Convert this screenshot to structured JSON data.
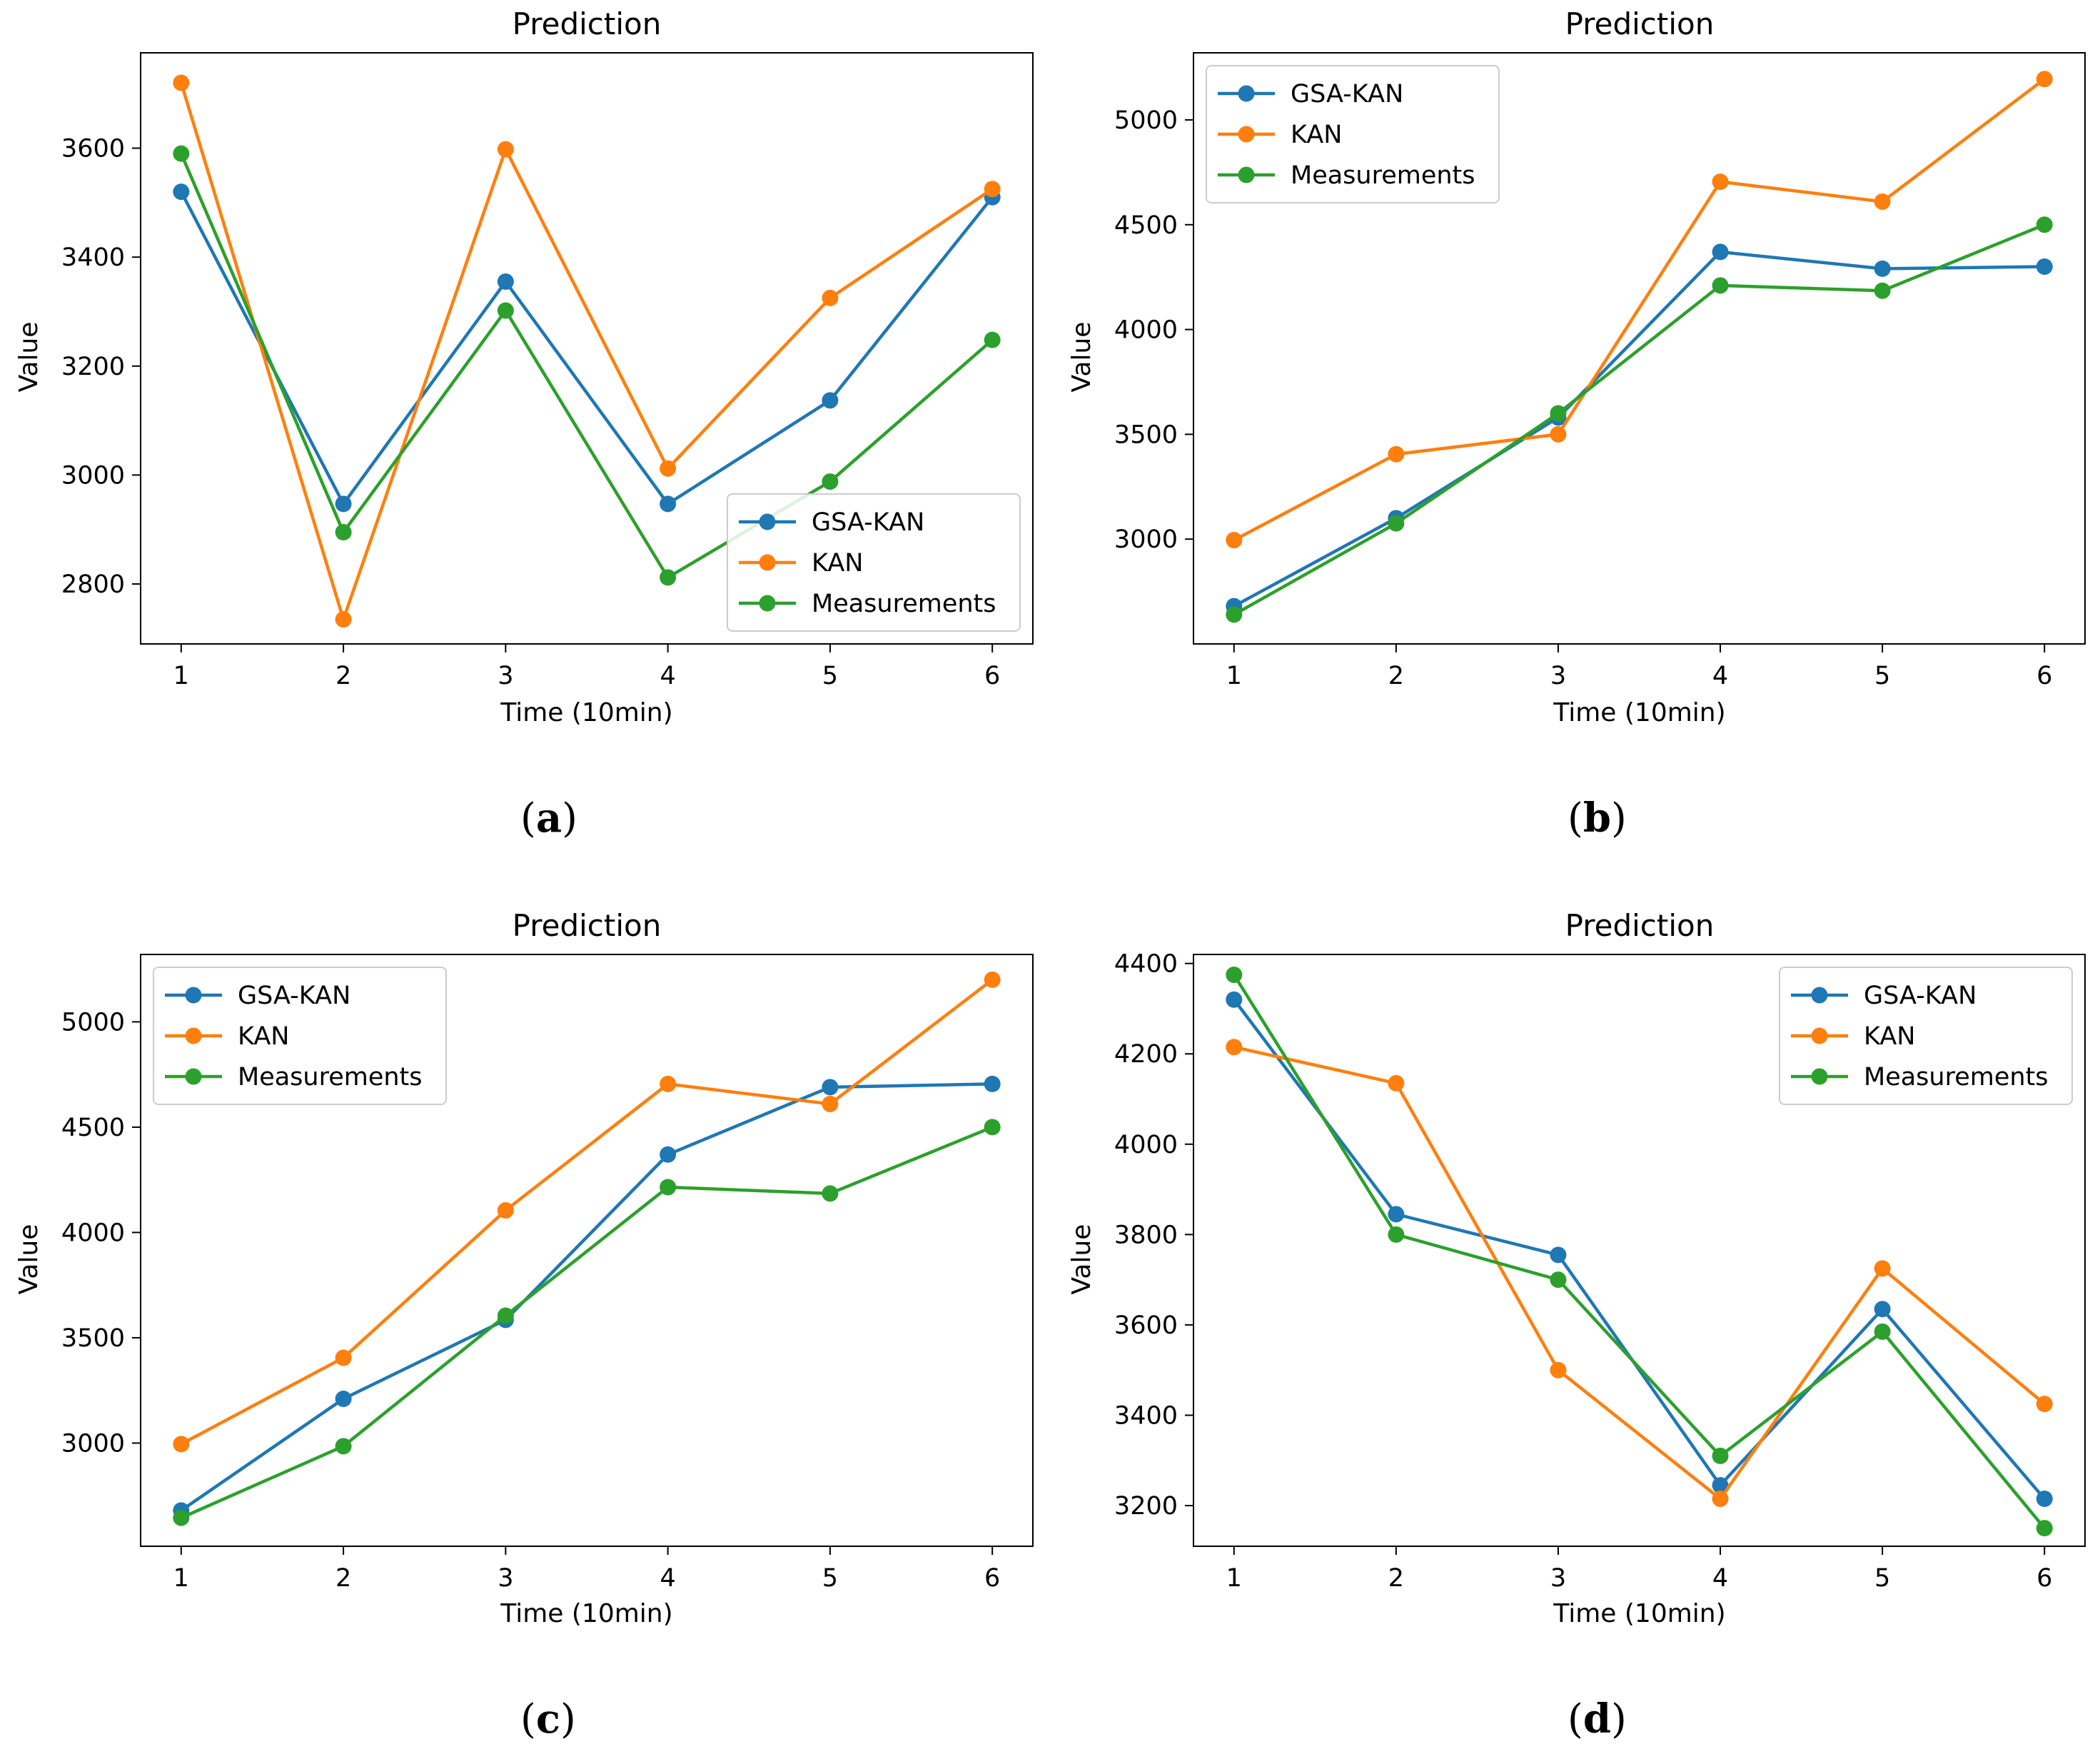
{
  "chart_data": [
    {
      "type": "line",
      "panel": "a",
      "caption": "(a)",
      "title": "Prediction",
      "xlabel": "Time (10min)",
      "ylabel": "Value",
      "x": [
        1,
        2,
        3,
        4,
        5,
        6
      ],
      "xlim": [
        0.75,
        6.25
      ],
      "ylim": [
        2690,
        3775
      ],
      "yticks": [
        2800,
        3000,
        3200,
        3400,
        3600
      ],
      "legend": "lower-right",
      "series": [
        {
          "name": "GSA-KAN",
          "color": "#1f77b4",
          "values": [
            3520,
            2947,
            3355,
            2947,
            3137,
            3510
          ]
        },
        {
          "name": "KAN",
          "color": "#ff7f0e",
          "values": [
            3720,
            2735,
            3598,
            3012,
            3325,
            3525
          ]
        },
        {
          "name": "Measurements",
          "color": "#2ca02c",
          "values": [
            3590,
            2895,
            3302,
            2812,
            2988,
            3248
          ]
        }
      ]
    },
    {
      "type": "line",
      "panel": "b",
      "caption": "(b)",
      "title": "Prediction",
      "xlabel": "Time (10min)",
      "ylabel": "Value",
      "x": [
        1,
        2,
        3,
        4,
        5,
        6
      ],
      "xlim": [
        0.75,
        6.25
      ],
      "ylim": [
        2500,
        5320
      ],
      "yticks": [
        3000,
        3500,
        4000,
        4500,
        5000
      ],
      "legend": "upper-left",
      "series": [
        {
          "name": "GSA-KAN",
          "color": "#1f77b4",
          "values": [
            2680,
            3100,
            3580,
            4370,
            4290,
            4300
          ]
        },
        {
          "name": "KAN",
          "color": "#ff7f0e",
          "values": [
            2995,
            3405,
            3500,
            4705,
            4610,
            5195
          ]
        },
        {
          "name": "Measurements",
          "color": "#2ca02c",
          "values": [
            2640,
            3075,
            3600,
            4210,
            4185,
            4500
          ]
        }
      ]
    },
    {
      "type": "line",
      "panel": "c",
      "caption": "(c)",
      "title": "Prediction",
      "xlabel": "Time (10min)",
      "ylabel": "Value",
      "x": [
        1,
        2,
        3,
        4,
        5,
        6
      ],
      "xlim": [
        0.75,
        6.25
      ],
      "ylim": [
        2510,
        5320
      ],
      "yticks": [
        3000,
        3500,
        4000,
        4500,
        5000
      ],
      "legend": "upper-left",
      "series": [
        {
          "name": "GSA-KAN",
          "color": "#1f77b4",
          "values": [
            2680,
            3210,
            3585,
            4370,
            4690,
            4705
          ]
        },
        {
          "name": "KAN",
          "color": "#ff7f0e",
          "values": [
            2995,
            3405,
            4105,
            4705,
            4610,
            5200
          ]
        },
        {
          "name": "Measurements",
          "color": "#2ca02c",
          "values": [
            2645,
            2985,
            3605,
            4215,
            4185,
            4500
          ]
        }
      ]
    },
    {
      "type": "line",
      "panel": "d",
      "caption": "(d)",
      "title": "Prediction",
      "xlabel": "Time (10min)",
      "ylabel": "Value",
      "x": [
        1,
        2,
        3,
        4,
        5,
        6
      ],
      "xlim": [
        0.75,
        6.25
      ],
      "ylim": [
        3110,
        4420
      ],
      "yticks": [
        3200,
        3400,
        3600,
        3800,
        4000,
        4200,
        4400
      ],
      "legend": "upper-right",
      "series": [
        {
          "name": "GSA-KAN",
          "color": "#1f77b4",
          "values": [
            4320,
            3845,
            3755,
            3245,
            3635,
            3215
          ]
        },
        {
          "name": "KAN",
          "color": "#ff7f0e",
          "values": [
            4215,
            4135,
            3500,
            3215,
            3725,
            3425
          ]
        },
        {
          "name": "Measurements",
          "color": "#2ca02c",
          "values": [
            4375,
            3800,
            3700,
            3310,
            3585,
            3150
          ]
        }
      ]
    }
  ]
}
